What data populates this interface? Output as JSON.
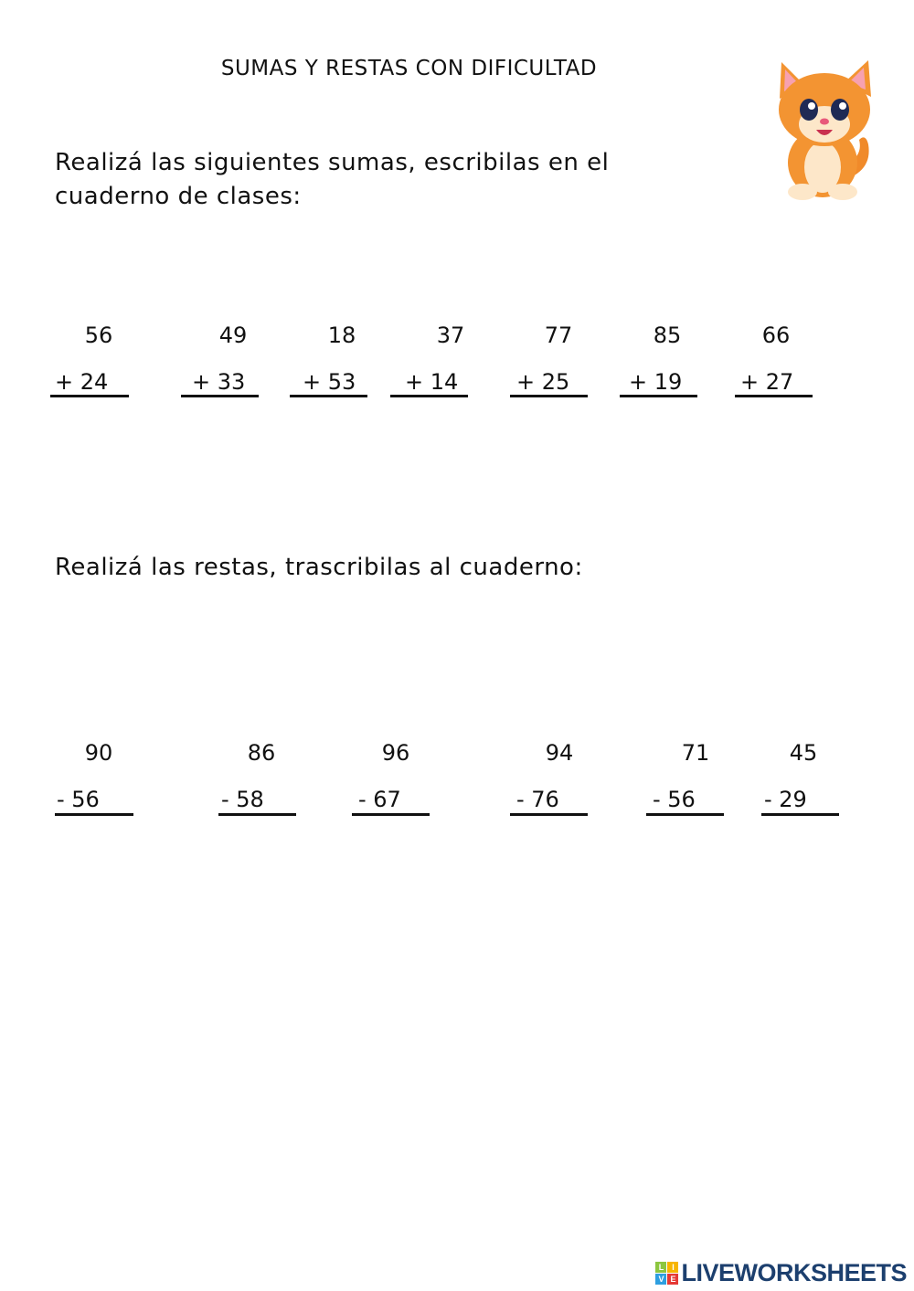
{
  "title": "SUMAS Y RESTAS CON DIFICULTAD",
  "instructions_sums": [
    "Realizá las siguientes sumas, escribilas en el",
    "cuaderno de clases:"
  ],
  "instructions_subtractions": "Realizá las restas, trascribilas al cuaderno:",
  "sums": [
    {
      "top": "56",
      "bottom": "+ 24"
    },
    {
      "top": "49",
      "bottom": "+ 33"
    },
    {
      "top": "18",
      "bottom": "+ 53"
    },
    {
      "top": "37",
      "bottom": "+ 14"
    },
    {
      "top": "77",
      "bottom": "+ 25"
    },
    {
      "top": "85",
      "bottom": "+ 19"
    },
    {
      "top": "66",
      "bottom": "+ 27"
    }
  ],
  "subtractions": [
    {
      "top": "90",
      "bottom": "- 56"
    },
    {
      "top": "86",
      "bottom": "- 58"
    },
    {
      "top": "96",
      "bottom": "- 67"
    },
    {
      "top": "94",
      "bottom": "- 76"
    },
    {
      "top": "71",
      "bottom": "- 56"
    },
    {
      "top": "45",
      "bottom": "- 29"
    }
  ],
  "illustration": "cartoon-orange-kitten",
  "logo": {
    "blocks": [
      "L",
      "I",
      "V",
      "E"
    ],
    "text": "LIVEWORKSHEETS",
    "color": "#1c3f6e"
  }
}
